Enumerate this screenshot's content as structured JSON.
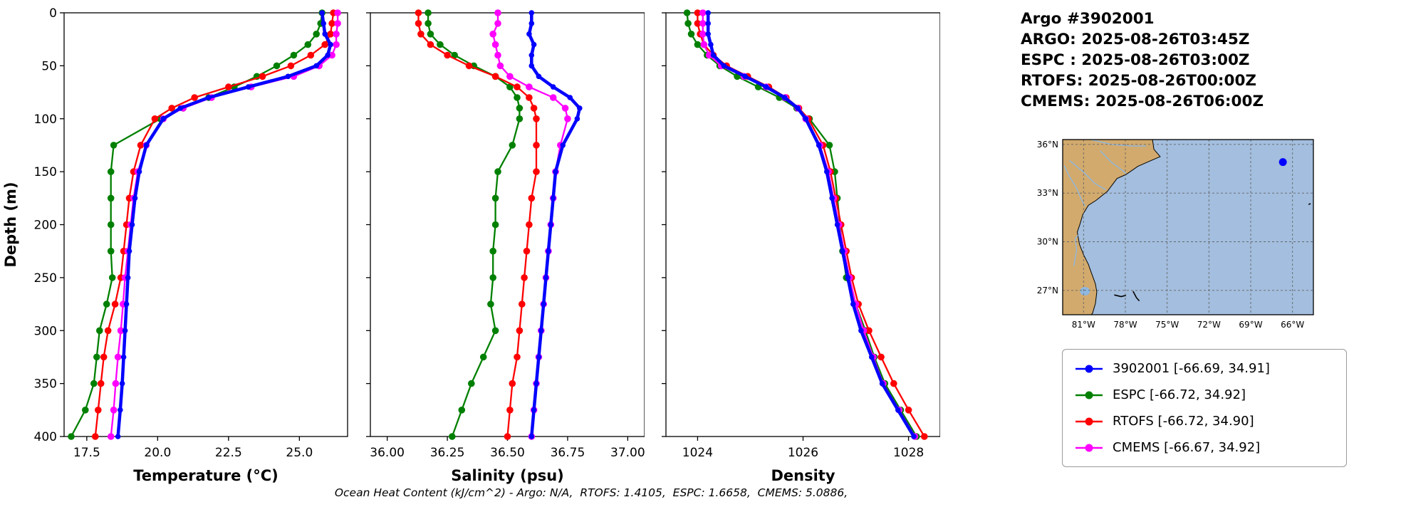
{
  "header": {
    "title": "Argo #3902001",
    "lines": [
      "ARGO: 2025-08-26T03:45Z",
      "ESPC : 2025-08-26T03:00Z",
      "RTOFS: 2025-08-26T00:00Z",
      "CMEMS: 2025-08-26T06:00Z"
    ]
  },
  "footer": {
    "text": "Ocean Heat Content (kJ/cm^2) - Argo: N/A,  RTOFS: 1.4105,  ESPC: 1.6658,  CMEMS: 5.0886,"
  },
  "legend": {
    "items": [
      {
        "label": "3902001 [-66.69, 34.91]",
        "color": "#0000ff"
      },
      {
        "label": "ESPC [-66.72, 34.92]",
        "color": "#008000"
      },
      {
        "label": "RTOFS [-66.72, 34.90]",
        "color": "#ff0000"
      },
      {
        "label": "CMEMS [-66.67, 34.92]",
        "color": "#ff00ff"
      }
    ]
  },
  "map": {
    "land_color": "#d2aa6d",
    "ocean_color": "#a3bede",
    "water_color": "#8fb8e0",
    "marker": {
      "lon": -66.69,
      "lat": 34.91,
      "color": "#0000ff"
    },
    "extent": {
      "lon_min": -82.5,
      "lon_max": -64.5,
      "lat_min": 25.5,
      "lat_max": 36.3
    },
    "lat_ticks": [
      {
        "value": 36,
        "label": "36°N"
      },
      {
        "value": 33,
        "label": "33°N"
      },
      {
        "value": 30,
        "label": "30°N"
      },
      {
        "value": 27,
        "label": "27°N"
      }
    ],
    "lon_ticks": [
      {
        "value": -81,
        "label": "81°W"
      },
      {
        "value": -78,
        "label": "78°W"
      },
      {
        "value": -75,
        "label": "75°W"
      },
      {
        "value": -72,
        "label": "72°W"
      },
      {
        "value": -69,
        "label": "69°W"
      },
      {
        "value": -66,
        "label": "66°W"
      }
    ]
  },
  "chart_data": [
    {
      "type": "line",
      "title": "",
      "xlabel": "Temperature (°C)",
      "ylabel": "Depth (m)",
      "xlim": [
        16.7,
        26.7
      ],
      "ylim": [
        0,
        400
      ],
      "y_inverted": true,
      "xticks": [
        17.5,
        20.0,
        22.5,
        25.0
      ],
      "xtick_labels": [
        "17.5",
        "20.0",
        "22.5",
        "25.0"
      ],
      "yticks": [
        0,
        50,
        100,
        150,
        200,
        250,
        300,
        350,
        400
      ],
      "ytick_labels": [
        "0",
        "50",
        "100",
        "150",
        "200",
        "250",
        "300",
        "350",
        "400"
      ],
      "depths": [
        0,
        10,
        20,
        30,
        40,
        50,
        60,
        70,
        80,
        90,
        100,
        125,
        150,
        175,
        200,
        225,
        250,
        275,
        300,
        325,
        350,
        375,
        400
      ],
      "series": [
        {
          "name": "3902001",
          "color": "#0000ff",
          "line_width": 4.5,
          "marker_size": 3.8,
          "zorder": 4,
          "values": [
            25.8,
            25.85,
            25.9,
            26.1,
            26.0,
            25.6,
            24.6,
            23.2,
            21.8,
            20.8,
            20.2,
            19.6,
            19.35,
            19.2,
            19.1,
            19.0,
            18.95,
            18.9,
            18.85,
            18.8,
            18.75,
            18.68,
            18.6
          ]
        },
        {
          "name": "ESPC",
          "color": "#008000",
          "line_width": 2.3,
          "marker_size": 4.8,
          "zorder": 1,
          "values": [
            25.8,
            25.75,
            25.6,
            25.3,
            24.8,
            24.2,
            23.5,
            22.7,
            21.8,
            20.9,
            20.1,
            18.45,
            18.35,
            18.35,
            18.35,
            18.35,
            18.4,
            18.2,
            17.95,
            17.85,
            17.75,
            17.45,
            16.95
          ]
        },
        {
          "name": "RTOFS",
          "color": "#ff0000",
          "line_width": 2.3,
          "marker_size": 4.8,
          "zorder": 2,
          "values": [
            26.2,
            26.15,
            26.1,
            25.9,
            25.4,
            24.7,
            23.7,
            22.5,
            21.3,
            20.5,
            19.9,
            19.4,
            19.15,
            19.0,
            18.9,
            18.8,
            18.7,
            18.5,
            18.25,
            18.1,
            18.0,
            17.9,
            17.8
          ]
        },
        {
          "name": "CMEMS",
          "color": "#ff00ff",
          "line_width": 2.3,
          "marker_size": 4.8,
          "zorder": 3,
          "values": [
            26.35,
            26.35,
            26.3,
            26.3,
            26.15,
            25.7,
            24.8,
            23.3,
            21.9,
            20.9,
            20.2,
            19.6,
            19.3,
            19.15,
            19.05,
            18.95,
            18.85,
            18.78,
            18.7,
            18.6,
            18.52,
            18.45,
            18.35
          ]
        }
      ]
    },
    {
      "type": "line",
      "title": "",
      "xlabel": "Salinity (psu)",
      "ylabel": "",
      "xlim": [
        35.93,
        37.07
      ],
      "ylim": [
        0,
        400
      ],
      "y_inverted": true,
      "xticks": [
        36.0,
        36.25,
        36.5,
        36.75,
        37.0
      ],
      "xtick_labels": [
        "36.00",
        "36.25",
        "36.50",
        "36.75",
        "37.00"
      ],
      "yticks": [
        0,
        50,
        100,
        150,
        200,
        250,
        300,
        350,
        400
      ],
      "depths": [
        0,
        10,
        20,
        30,
        40,
        50,
        60,
        70,
        80,
        90,
        100,
        125,
        150,
        175,
        200,
        225,
        250,
        275,
        300,
        325,
        350,
        375,
        400
      ],
      "series": [
        {
          "name": "3902001",
          "color": "#0000ff",
          "line_width": 4.5,
          "marker_size": 3.8,
          "zorder": 4,
          "values": [
            36.6,
            36.6,
            36.59,
            36.61,
            36.6,
            36.6,
            36.63,
            36.69,
            36.76,
            36.8,
            36.79,
            36.73,
            36.7,
            36.69,
            36.68,
            36.67,
            36.66,
            36.65,
            36.64,
            36.63,
            36.62,
            36.61,
            36.6
          ]
        },
        {
          "name": "ESPC",
          "color": "#008000",
          "line_width": 2.3,
          "marker_size": 4.8,
          "zorder": 1,
          "values": [
            36.17,
            36.17,
            36.18,
            36.22,
            36.28,
            36.36,
            36.45,
            36.51,
            36.54,
            36.55,
            36.55,
            36.52,
            36.46,
            36.45,
            36.45,
            36.44,
            36.44,
            36.43,
            36.45,
            36.4,
            36.35,
            36.31,
            36.27
          ]
        },
        {
          "name": "RTOFS",
          "color": "#ff0000",
          "line_width": 2.3,
          "marker_size": 4.8,
          "zorder": 2,
          "values": [
            36.13,
            36.13,
            36.14,
            36.18,
            36.25,
            36.34,
            36.45,
            36.54,
            36.59,
            36.61,
            36.62,
            36.62,
            36.62,
            36.6,
            36.59,
            36.58,
            36.57,
            36.56,
            36.55,
            36.54,
            36.52,
            36.51,
            36.5
          ]
        },
        {
          "name": "CMEMS",
          "color": "#ff00ff",
          "line_width": 2.3,
          "marker_size": 4.8,
          "zorder": 3,
          "values": [
            36.46,
            36.46,
            36.44,
            36.45,
            36.46,
            36.47,
            36.51,
            36.59,
            36.69,
            36.74,
            36.75,
            36.72,
            36.7,
            36.69,
            36.68,
            36.67,
            36.66,
            36.65,
            36.64,
            36.63,
            36.62,
            36.61,
            36.6
          ]
        }
      ]
    },
    {
      "type": "line",
      "title": "",
      "xlabel": "Density",
      "ylabel": "",
      "xlim": [
        1023.4,
        1028.6
      ],
      "ylim": [
        0,
        400
      ],
      "y_inverted": true,
      "xticks": [
        1024,
        1026,
        1028
      ],
      "xtick_labels": [
        "1024",
        "1026",
        "1028"
      ],
      "yticks": [
        0,
        50,
        100,
        150,
        200,
        250,
        300,
        350,
        400
      ],
      "depths": [
        0,
        10,
        20,
        30,
        40,
        50,
        60,
        70,
        80,
        90,
        100,
        125,
        150,
        175,
        200,
        225,
        250,
        275,
        300,
        325,
        350,
        375,
        400
      ],
      "series": [
        {
          "name": "3902001",
          "color": "#0000ff",
          "line_width": 4.5,
          "marker_size": 3.8,
          "zorder": 4,
          "values": [
            1024.2,
            1024.2,
            1024.2,
            1024.25,
            1024.3,
            1024.5,
            1024.9,
            1025.3,
            1025.65,
            1025.9,
            1026.05,
            1026.3,
            1026.45,
            1026.55,
            1026.65,
            1026.75,
            1026.85,
            1026.95,
            1027.1,
            1027.3,
            1027.5,
            1027.8,
            1028.1
          ]
        },
        {
          "name": "ESPC",
          "color": "#008000",
          "line_width": 2.3,
          "marker_size": 4.8,
          "zorder": 1,
          "values": [
            1023.8,
            1023.82,
            1023.88,
            1024.0,
            1024.18,
            1024.42,
            1024.75,
            1025.15,
            1025.55,
            1025.88,
            1026.12,
            1026.5,
            1026.6,
            1026.65,
            1026.7,
            1026.75,
            1026.82,
            1027.0,
            1027.18,
            1027.35,
            1027.55,
            1027.85,
            1028.15
          ]
        },
        {
          "name": "RTOFS",
          "color": "#ff0000",
          "line_width": 2.3,
          "marker_size": 4.8,
          "zorder": 2,
          "values": [
            1024.0,
            1024.0,
            1024.05,
            1024.12,
            1024.3,
            1024.55,
            1024.95,
            1025.35,
            1025.68,
            1025.92,
            1026.1,
            1026.38,
            1026.52,
            1026.62,
            1026.72,
            1026.82,
            1026.92,
            1027.05,
            1027.25,
            1027.48,
            1027.72,
            1028.0,
            1028.3
          ]
        },
        {
          "name": "CMEMS",
          "color": "#ff00ff",
          "line_width": 2.3,
          "marker_size": 4.8,
          "zorder": 3,
          "values": [
            1024.1,
            1024.1,
            1024.1,
            1024.12,
            1024.22,
            1024.45,
            1024.88,
            1025.3,
            1025.66,
            1025.9,
            1026.05,
            1026.32,
            1026.48,
            1026.58,
            1026.68,
            1026.78,
            1026.88,
            1027.0,
            1027.15,
            1027.33,
            1027.52,
            1027.82,
            1028.12
          ]
        }
      ]
    }
  ]
}
